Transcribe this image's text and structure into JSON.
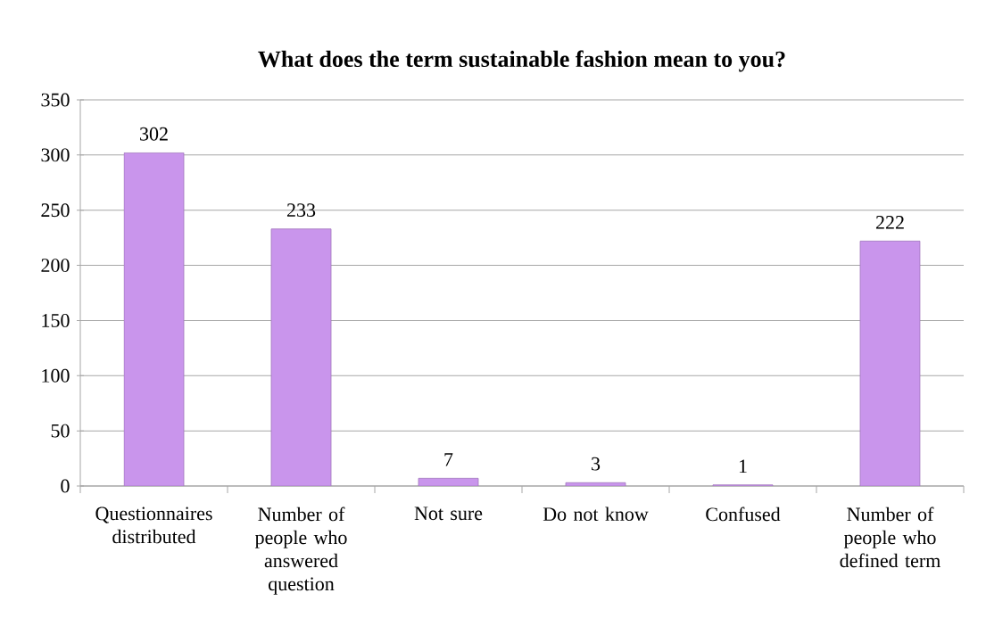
{
  "chart_data": {
    "type": "bar",
    "title": "What does the term sustainable fashion mean to you?",
    "categories": [
      "Questionnaires distributed",
      "Number of people who answered question",
      "Not sure",
      "Do not know",
      "Confused",
      "Number of people who defined term"
    ],
    "values": [
      302,
      233,
      7,
      3,
      1,
      222
    ],
    "color": "#c995ec",
    "ylim": [
      0,
      350
    ],
    "yticks": [
      0,
      50,
      100,
      150,
      200,
      250,
      300,
      350
    ],
    "grid": "y",
    "data_labels": true
  }
}
